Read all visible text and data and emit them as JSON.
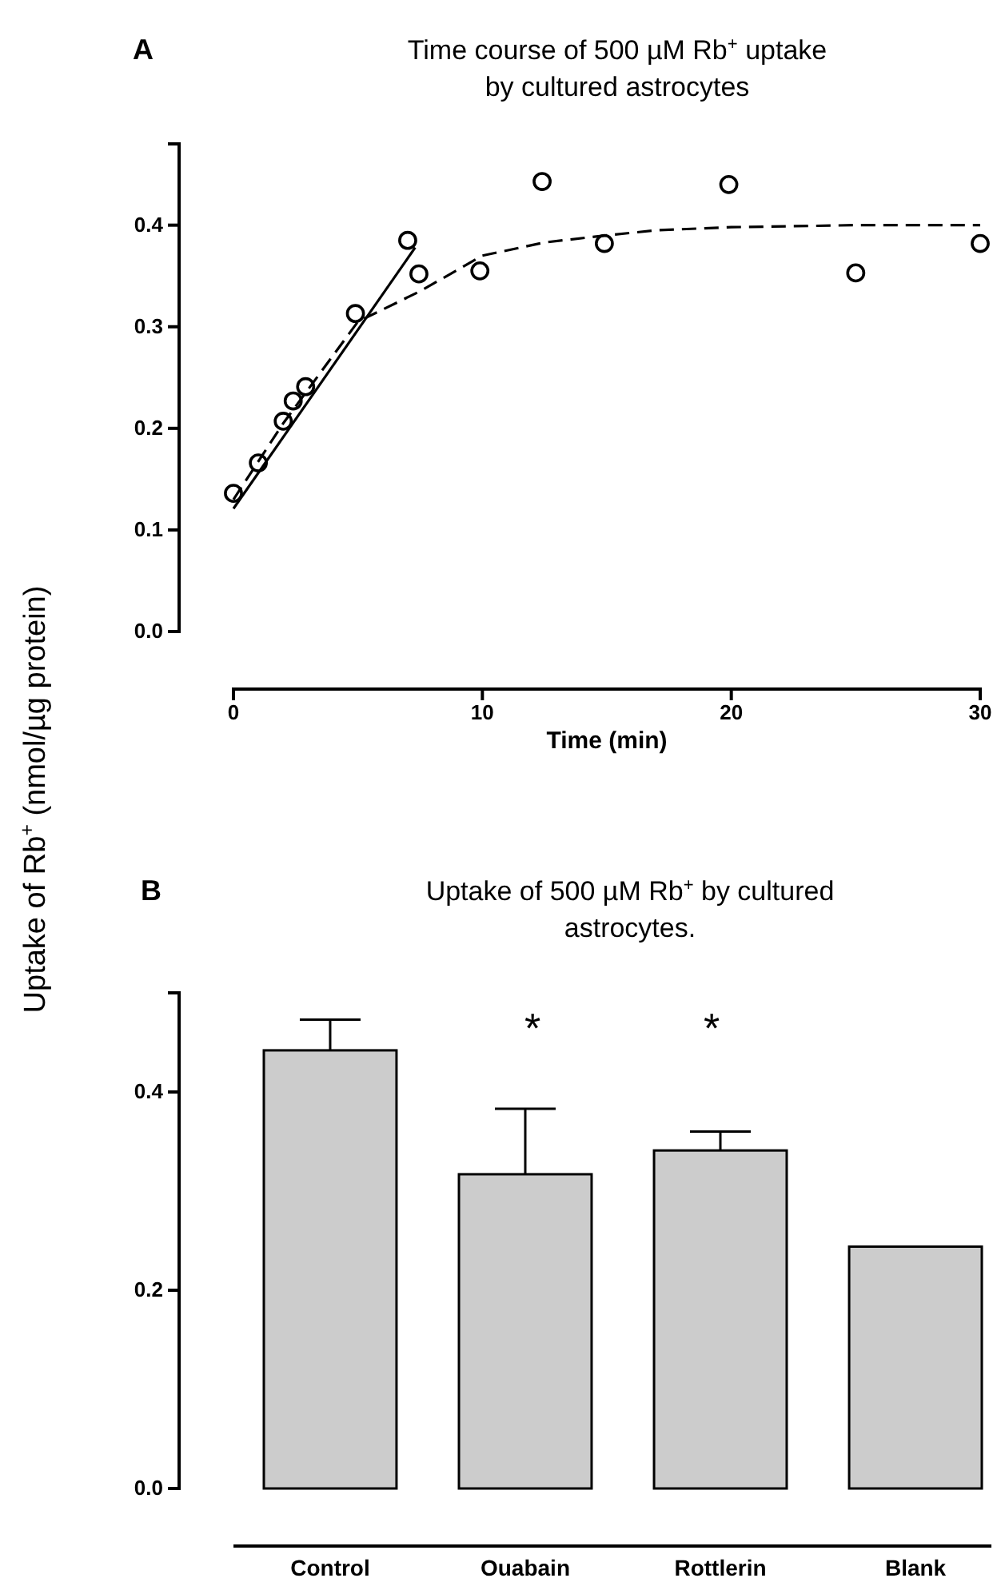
{
  "chart_data": [
    {
      "type": "scatter",
      "title": "Time course of 500  µM Rb$^{+}$ uptake\nby cultured astrocytes",
      "xlabel": "Time (min)",
      "ylabel": "Uptake of Rb$^{+}$ (nmol/µg protein)",
      "xlim": [
        0,
        30
      ],
      "ylim": [
        0,
        0.48
      ],
      "xticks": [
        0,
        10,
        20,
        30
      ],
      "yticks": [
        {
          "value": 0,
          "label": "0.0"
        },
        {
          "value": 0.1,
          "label": "0.1"
        },
        {
          "value": 0.2,
          "label": "0.2"
        },
        {
          "value": 0.3,
          "label": "0.3"
        },
        {
          "value": 0.4,
          "label": "0.4"
        }
      ],
      "marker": "circle",
      "annotations": [
        "A"
      ],
      "series": [
        {
          "type": "scatter",
          "color": "#000000",
          "x": [
            0,
            1,
            2,
            2.4,
            2.9,
            4.9,
            7,
            7.45,
            9.9,
            12.4,
            14.9,
            19.9,
            25,
            30
          ],
          "values": [
            0.136,
            0.166,
            0.207,
            0.227,
            0.241,
            0.313,
            0.385,
            0.352,
            0.355,
            0.443,
            0.382,
            0.44,
            0.353,
            0.382
          ]
        },
        {
          "type": "line",
          "color": "#000000",
          "marker": "none",
          "line_style": "solid",
          "x": [
            0,
            7.3
          ],
          "values": [
            0.121,
            0.378
          ]
        },
        {
          "type": "line",
          "color": "#000000",
          "marker": "none",
          "line_style": "dashed",
          "x": [
            0,
            2,
            5,
            7.5,
            10,
            12.5,
            15,
            17,
            20,
            25,
            30
          ],
          "values": [
            0.13,
            0.205,
            0.305,
            0.335,
            0.37,
            0.383,
            0.39,
            0.395,
            0.398,
            0.4,
            0.4
          ]
        }
      ]
    },
    {
      "type": "bar",
      "title": "Uptake of 500 µM Rb$^{+}$ by cultured\nastrocytes.",
      "categories": [
        "Control",
        "Ouabain",
        "Rottlerin",
        "Blank"
      ],
      "values": [
        0.442,
        0.317,
        0.341,
        0.244
      ],
      "color": "#cccccc",
      "errors": [
        [
          0.442,
          0.473
        ],
        [
          0.317,
          0.383
        ],
        [
          0.341,
          0.36
        ],
        null
      ],
      "ylim": [
        0,
        0.5
      ],
      "yticks": [
        {
          "value": 0,
          "label": "0.0"
        },
        {
          "value": 0.2,
          "label": "0.2"
        },
        {
          "value": 0.4,
          "label": "0.4"
        }
      ],
      "annotations": [
        "B",
        "*",
        "*"
      ]
    }
  ]
}
